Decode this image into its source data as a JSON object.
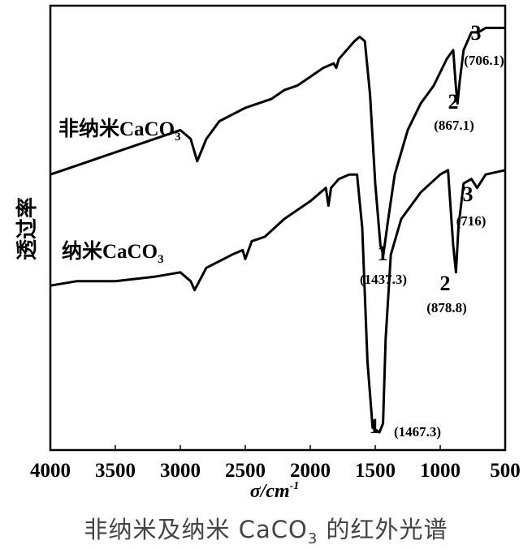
{
  "chart_data": {
    "type": "line",
    "title": "非纳米及纳米 CaCO3 的红外光谱",
    "xlabel": "σ/cm⁻¹",
    "ylabel": "透过率",
    "xlim": [
      4000,
      500
    ],
    "x_reversed": true,
    "x_ticks": [
      4000,
      3500,
      3000,
      2500,
      2000,
      1500,
      1000,
      500
    ],
    "y_ticks": [],
    "grid": false,
    "legend_position": "inline-labels",
    "y_units": "relative transmittance (arbitrary, offset curves; 0 = bottom of frame, 100 = top)",
    "series": [
      {
        "name": "非纳米CaCO3",
        "label_text": "非纳米CaCO",
        "label_sub": "3",
        "points": [
          [
            4000,
            62
          ],
          [
            3800,
            64
          ],
          [
            3500,
            67
          ],
          [
            3200,
            70
          ],
          [
            3000,
            72
          ],
          [
            2920,
            70
          ],
          [
            2870,
            65
          ],
          [
            2800,
            70
          ],
          [
            2700,
            74
          ],
          [
            2500,
            77
          ],
          [
            2300,
            79
          ],
          [
            2200,
            81
          ],
          [
            2100,
            82
          ],
          [
            2000,
            84
          ],
          [
            1900,
            86
          ],
          [
            1820,
            87
          ],
          [
            1800,
            86
          ],
          [
            1780,
            88
          ],
          [
            1660,
            92
          ],
          [
            1620,
            93
          ],
          [
            1580,
            92
          ],
          [
            1540,
            80
          ],
          [
            1500,
            60
          ],
          [
            1460,
            46
          ],
          [
            1437.3,
            44
          ],
          [
            1400,
            52
          ],
          [
            1350,
            62
          ],
          [
            1250,
            72
          ],
          [
            1150,
            78
          ],
          [
            1050,
            82
          ],
          [
            950,
            88
          ],
          [
            900,
            90
          ],
          [
            880,
            82
          ],
          [
            867.1,
            78
          ],
          [
            850,
            83
          ],
          [
            820,
            90
          ],
          [
            760,
            94
          ],
          [
            706.1,
            94
          ],
          [
            650,
            95
          ],
          [
            500,
            95
          ]
        ],
        "annotations": [
          {
            "peak": "1",
            "wavenumber": "1437.3",
            "label": "(1437.3)"
          },
          {
            "peak": "2",
            "wavenumber": "867.1",
            "label": "(867.1)"
          },
          {
            "peak": "3",
            "wavenumber": "706.1",
            "label": "(706.1)"
          }
        ]
      },
      {
        "name": "纳米CaCO3",
        "label_text": "纳米CaCO",
        "label_sub": "3",
        "points": [
          [
            4000,
            37
          ],
          [
            3800,
            38
          ],
          [
            3500,
            38
          ],
          [
            3200,
            39
          ],
          [
            3000,
            40
          ],
          [
            2920,
            38
          ],
          [
            2890,
            36
          ],
          [
            2800,
            41
          ],
          [
            2600,
            44
          ],
          [
            2520,
            45
          ],
          [
            2500,
            43
          ],
          [
            2450,
            47
          ],
          [
            2350,
            48
          ],
          [
            2200,
            52
          ],
          [
            2000,
            56
          ],
          [
            1880,
            59
          ],
          [
            1860,
            55
          ],
          [
            1840,
            59
          ],
          [
            1780,
            61
          ],
          [
            1700,
            62
          ],
          [
            1640,
            62
          ],
          [
            1600,
            50
          ],
          [
            1560,
            20
          ],
          [
            1520,
            5
          ],
          [
            1467.3,
            4
          ],
          [
            1440,
            6
          ],
          [
            1420,
            25
          ],
          [
            1380,
            44
          ],
          [
            1300,
            52
          ],
          [
            1150,
            58
          ],
          [
            1000,
            62
          ],
          [
            940,
            63
          ],
          [
            900,
            46
          ],
          [
            878.8,
            40
          ],
          [
            860,
            50
          ],
          [
            820,
            60
          ],
          [
            760,
            61
          ],
          [
            716,
            59
          ],
          [
            650,
            62
          ],
          [
            500,
            63
          ]
        ],
        "annotations": [
          {
            "peak": "1",
            "wavenumber": "1467.3",
            "label": "(1467.3)"
          },
          {
            "peak": "2",
            "wavenumber": "878.8",
            "label": "(878.8)"
          },
          {
            "peak": "3",
            "wavenumber": "716",
            "label": "(716)"
          }
        ]
      }
    ]
  },
  "labels": {
    "ylabel": "透过率",
    "xlabel_sigma": "σ/cm",
    "xlabel_sup": "-1",
    "caption_pre": "非纳米及纳米 CaCO",
    "caption_sub": "3",
    "caption_post": " 的红外光谱"
  }
}
